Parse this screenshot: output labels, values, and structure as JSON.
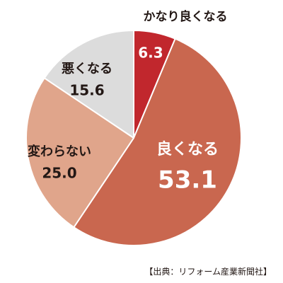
{
  "chart_data": {
    "type": "pie",
    "slices": [
      {
        "label": "かなり良くなる",
        "value": 6.3,
        "value_text": "6.3",
        "color": "#c1272d"
      },
      {
        "label": "良くなる",
        "value": 53.1,
        "value_text": "53.1",
        "color": "#c9674f"
      },
      {
        "label": "変わらない",
        "value": 25.0,
        "value_text": "25.0",
        "color": "#e0a58b"
      },
      {
        "label": "悪くなる",
        "value": 15.6,
        "value_text": "15.6",
        "color": "#dcdcdc"
      }
    ],
    "start_angle": "12 o'clock",
    "direction": "clockwise",
    "border_color": "#ffffff"
  },
  "source_note": "【出典：リフォーム産業新聞社】"
}
